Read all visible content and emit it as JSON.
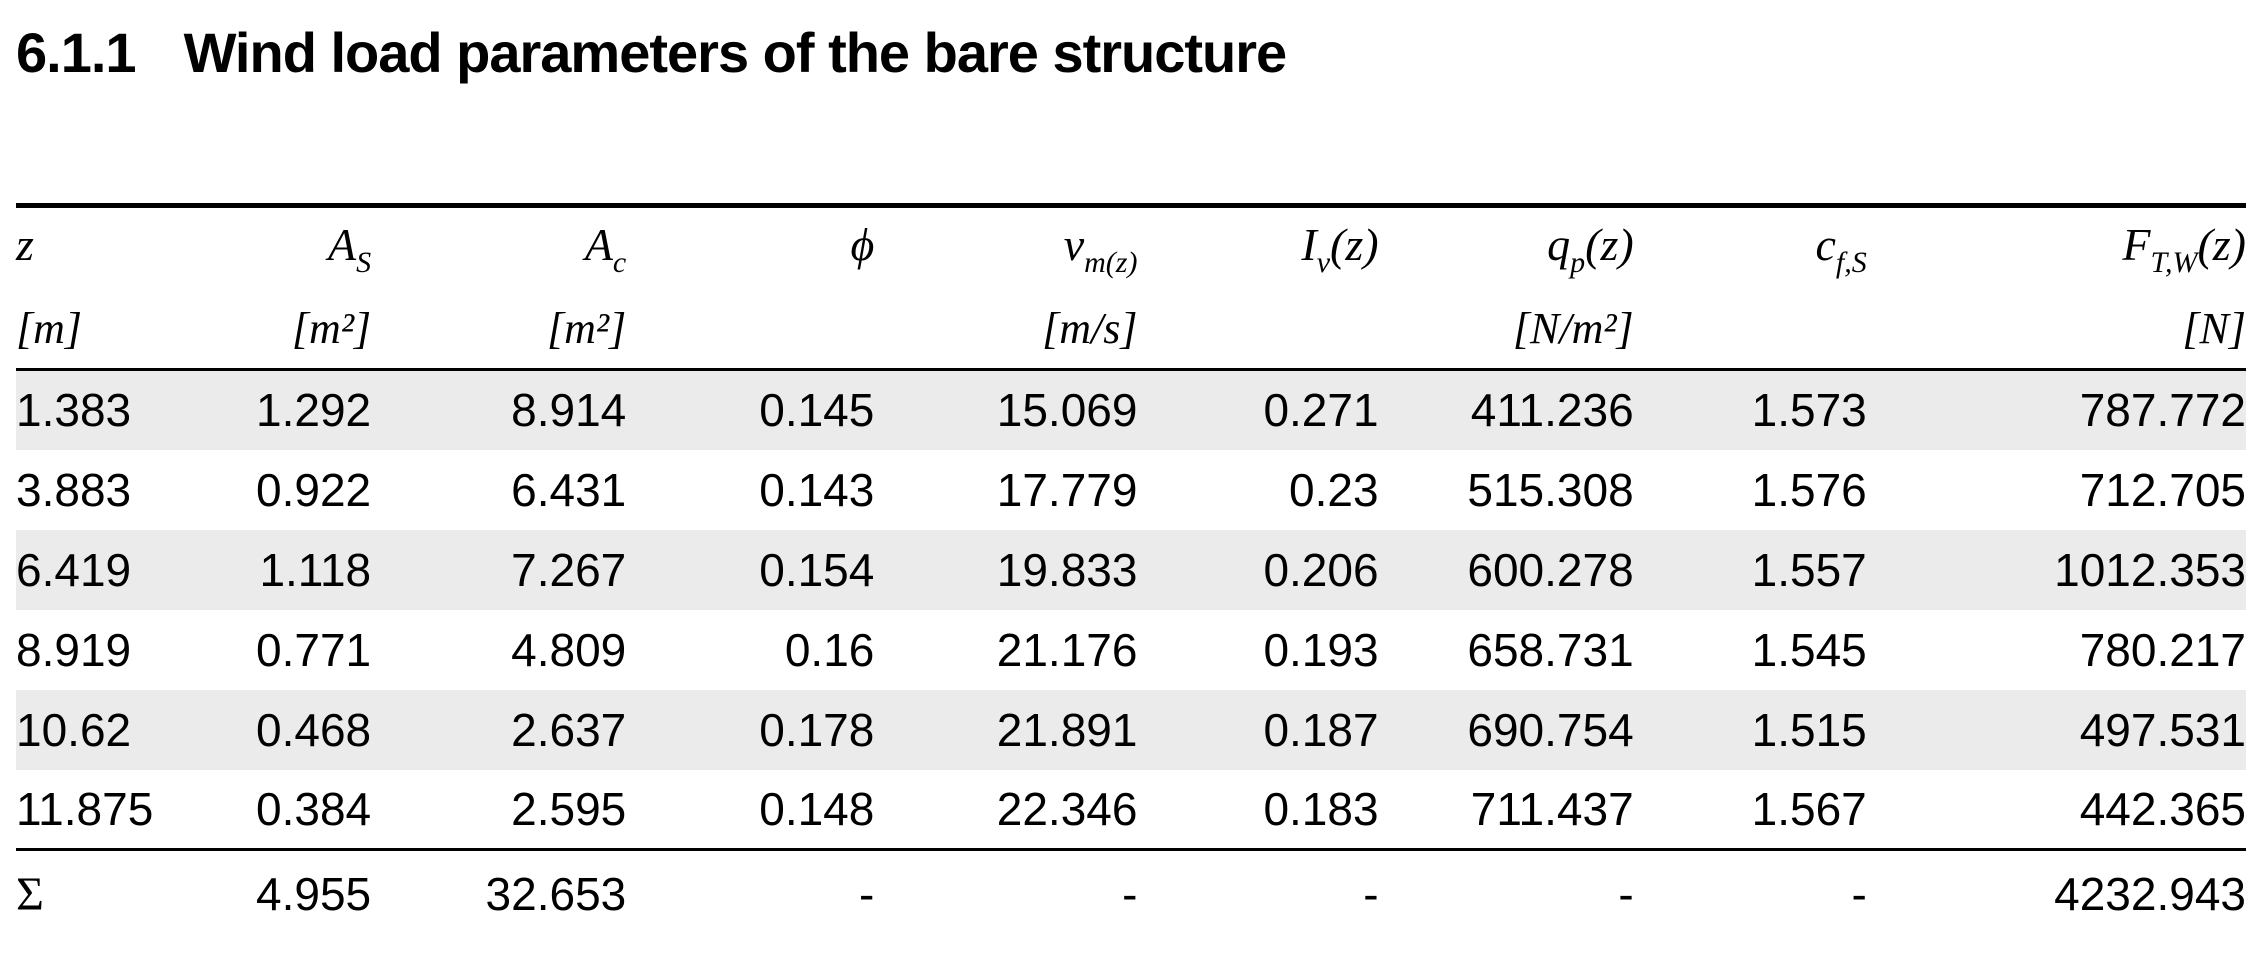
{
  "heading": {
    "number": "6.1.1",
    "text": "Wind load parameters of the bare structure"
  },
  "table": {
    "stripe_color": "#ebebeb",
    "text_color": "#000000",
    "columns": [
      {
        "base": "z",
        "sub": "",
        "suffix": "",
        "unit": "[m]"
      },
      {
        "base": "A",
        "sub": "S",
        "suffix": "",
        "unit": "[m²]"
      },
      {
        "base": "A",
        "sub": "c",
        "suffix": "",
        "unit": "[m²]"
      },
      {
        "base": "ϕ",
        "sub": "",
        "suffix": "",
        "unit": ""
      },
      {
        "base": "v",
        "sub": "m(z)",
        "suffix": "",
        "unit": "[m/s]"
      },
      {
        "base": "I",
        "sub": "v",
        "suffix": "(z)",
        "unit": ""
      },
      {
        "base": "q",
        "sub": "p",
        "suffix": "(z)",
        "unit": "[N/m²]"
      },
      {
        "base": "c",
        "sub": "f,S",
        "suffix": "",
        "unit": ""
      },
      {
        "base": "F",
        "sub": "T,W",
        "suffix": "(z)",
        "unit": "[N]"
      }
    ],
    "rows": [
      [
        "1.383",
        "1.292",
        "8.914",
        "0.145",
        "15.069",
        "0.271",
        "411.236",
        "1.573",
        "787.772"
      ],
      [
        "3.883",
        "0.922",
        "6.431",
        "0.143",
        "17.779",
        "0.23",
        "515.308",
        "1.576",
        "712.705"
      ],
      [
        "6.419",
        "1.118",
        "7.267",
        "0.154",
        "19.833",
        "0.206",
        "600.278",
        "1.557",
        "1012.353"
      ],
      [
        "8.919",
        "0.771",
        "4.809",
        "0.16",
        "21.176",
        "0.193",
        "658.731",
        "1.545",
        "780.217"
      ],
      [
        "10.62",
        "0.468",
        "2.637",
        "0.178",
        "21.891",
        "0.187",
        "690.754",
        "1.515",
        "497.531"
      ],
      [
        "11.875",
        "0.384",
        "2.595",
        "0.148",
        "22.346",
        "0.183",
        "711.437",
        "1.567",
        "442.365"
      ]
    ],
    "footer": [
      "Σ",
      "4.955",
      "32.653",
      "-",
      "-",
      "-",
      "-",
      "-",
      "4232.943"
    ]
  }
}
